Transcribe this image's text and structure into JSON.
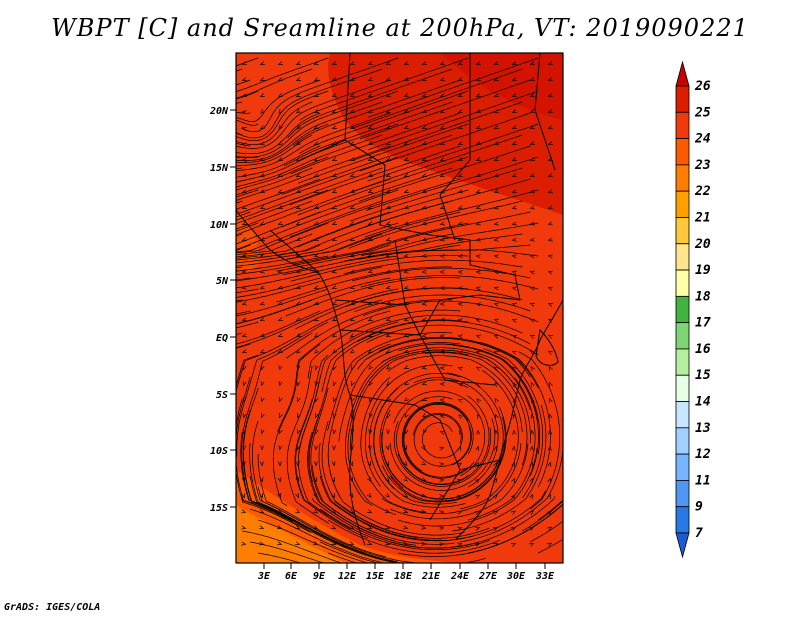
{
  "title": "WBPT [C] and Sreamline at 200hPa, VT: 2019090221",
  "credit": "GrADS: IGES/COLA",
  "map": {
    "lat_labels": [
      "20N",
      "15N",
      "10N",
      "5N",
      "EQ",
      "5S",
      "10S",
      "15S"
    ],
    "lon_labels": [
      "3E",
      "6E",
      "9E",
      "12E",
      "15E",
      "18E",
      "21E",
      "24E",
      "27E",
      "30E",
      "33E"
    ],
    "fill_dominant_color": "#f03a0c",
    "streamline_color": "#000000"
  },
  "colorbar": {
    "levels": [
      "26",
      "25",
      "24",
      "23",
      "22",
      "21",
      "20",
      "19",
      "18",
      "17",
      "16",
      "15",
      "14",
      "13",
      "12",
      "11",
      "9",
      "7"
    ],
    "colors": [
      "#c40000",
      "#dc1e00",
      "#f03a0c",
      "#ff5a00",
      "#ff7d00",
      "#ffa000",
      "#ffc83c",
      "#ffe68c",
      "#ffffaa",
      "#41b440",
      "#7fd573",
      "#b4f0a0",
      "#e6ffe6",
      "#c8e6ff",
      "#a0d0ff",
      "#78b4ff",
      "#5096f5",
      "#2878e6",
      "#1e5ad2"
    ]
  }
}
